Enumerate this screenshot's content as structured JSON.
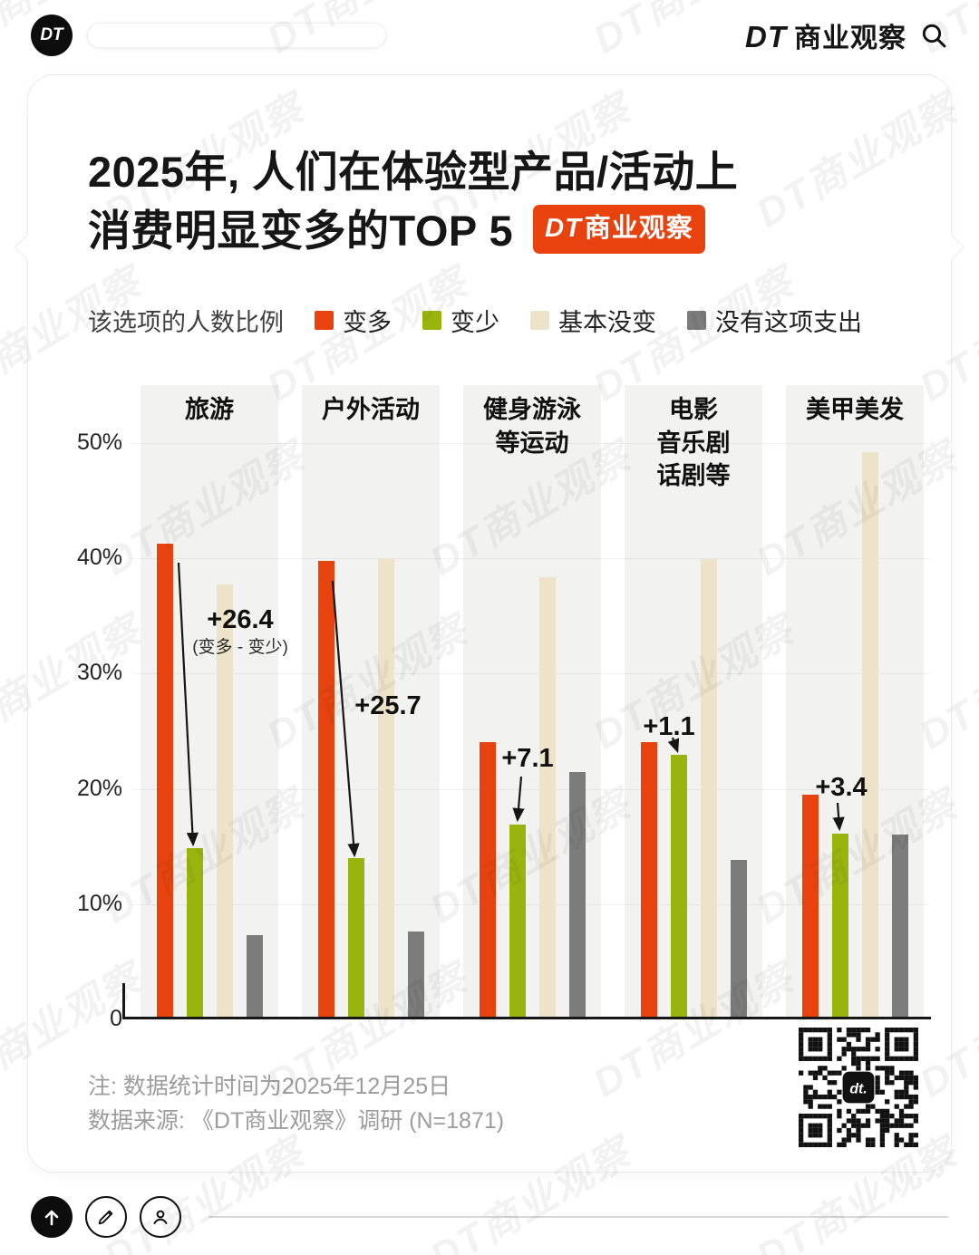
{
  "header": {
    "logo_text": "DT",
    "brand_dt": "DT",
    "brand_name": "商业观察"
  },
  "card": {
    "title_line1": "2025年, 人们在体验型产品/活动上",
    "title_line2": "消费明显变多的TOP 5",
    "badge_dt": "DT",
    "badge_name": "商业观察",
    "legend_label": "该选项的人数比例",
    "note_line1": "注: 数据统计时间为2025年12月25日",
    "note_line2": "数据来源: 《DT商业观察》调研 (N=1871)",
    "qr_label": "dt."
  },
  "chart_data": {
    "type": "bar",
    "title": "2025年, 人们在体验型产品/活动上消费明显变多的TOP 5",
    "categories": [
      "旅游",
      "户外活动",
      "健身游泳\n等运动",
      "电影\n音乐剧\n话剧等",
      "美甲美发"
    ],
    "series": [
      {
        "name": "变多",
        "color": "#E8430F",
        "values": [
          41.0,
          39.5,
          23.8,
          23.8,
          19.3
        ]
      },
      {
        "name": "变少",
        "color": "#9AB40E",
        "values": [
          14.6,
          13.8,
          16.7,
          22.7,
          15.9
        ]
      },
      {
        "name": "基本没变",
        "color": "#EDE3C8",
        "values": [
          37.5,
          39.7,
          38.1,
          39.7,
          49.0
        ]
      },
      {
        "name": "没有这项支出",
        "color": "#7C7C7C",
        "values": [
          7.1,
          7.4,
          21.2,
          13.6,
          15.8
        ]
      }
    ],
    "annotations": [
      {
        "text": "+26.4",
        "subtext": "(变多 - 变少)"
      },
      {
        "text": "+25.7",
        "subtext": ""
      },
      {
        "text": "+7.1",
        "subtext": ""
      },
      {
        "text": "+1.1",
        "subtext": ""
      },
      {
        "text": "+3.4",
        "subtext": ""
      }
    ],
    "ylabel_ticks": [
      "0",
      "10%",
      "20%",
      "30%",
      "40%",
      "50%"
    ],
    "ylim": [
      0,
      55
    ],
    "grid": true,
    "legend_position": "top"
  },
  "watermark": "DT商业观察",
  "footer": {
    "icons": [
      "up-arrow",
      "pencil",
      "person"
    ]
  }
}
